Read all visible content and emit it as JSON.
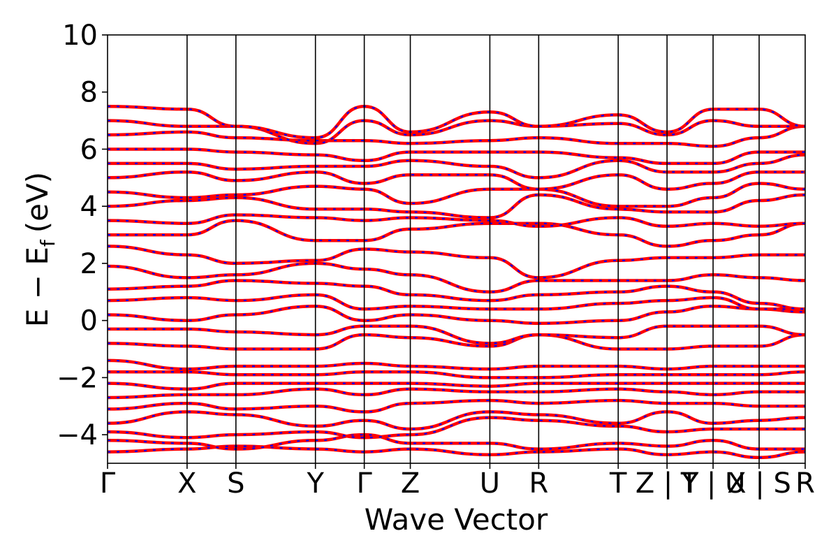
{
  "chart_data": {
    "type": "line",
    "title": "",
    "xlabel": "Wave Vector",
    "ylabel_main": "E − E",
    "ylabel_sub": "f",
    "ylabel_unit": "(eV)",
    "ylim": [
      -5,
      10
    ],
    "yticks": [
      -4,
      -2,
      0,
      2,
      4,
      6,
      8,
      10
    ],
    "ytick_labels": [
      "−4",
      "−2",
      "0",
      "2",
      "4",
      "6",
      "8",
      "10"
    ],
    "xlim": [
      0,
      1
    ],
    "kpoint_positions": [
      0,
      0.114,
      0.184,
      0.298,
      0.368,
      0.434,
      0.548,
      0.618,
      0.732,
      0.802,
      0.868,
      0.934,
      1.0
    ],
    "kpoint_labels": [
      "Γ",
      "X",
      "S",
      "Y",
      "Γ",
      "Z",
      "U",
      "R",
      "T",
      "Z | Y",
      "T | U",
      "X | S",
      "R"
    ],
    "grid": false,
    "colors": {
      "line": "#ff0000",
      "dash": "#0000ff"
    },
    "series": [
      {
        "values": [
          -4.6,
          -4.5,
          -4.4,
          -4.5,
          -4.6,
          -4.5,
          -4.7,
          -4.6,
          -4.5,
          -4.7,
          -4.6,
          -4.8,
          -4.6
        ]
      },
      {
        "values": [
          -4.2,
          -4.3,
          -4.5,
          -4.2,
          -4.0,
          -4.3,
          -4.3,
          -4.5,
          -4.3,
          -4.4,
          -4.2,
          -4.5,
          -4.5
        ]
      },
      {
        "values": [
          -3.9,
          -4.1,
          -4.0,
          -3.9,
          -4.1,
          -4.0,
          -3.4,
          -3.5,
          -3.7,
          -3.9,
          -3.8,
          -3.8,
          -3.8
        ]
      },
      {
        "values": [
          -3.6,
          -3.2,
          -3.3,
          -3.7,
          -3.5,
          -3.8,
          -3.2,
          -3.3,
          -3.6,
          -3.2,
          -3.6,
          -3.5,
          -3.4
        ]
      },
      {
        "values": [
          -3.1,
          -2.9,
          -3.1,
          -3.0,
          -3.2,
          -2.9,
          -2.8,
          -2.9,
          -2.8,
          -2.9,
          -2.9,
          -3.0,
          -3.0
        ]
      },
      {
        "values": [
          -2.7,
          -2.6,
          -2.6,
          -2.4,
          -2.6,
          -2.4,
          -2.5,
          -2.5,
          -2.4,
          -2.5,
          -2.6,
          -2.5,
          -2.5
        ]
      },
      {
        "values": [
          -2.2,
          -2.4,
          -2.2,
          -2.2,
          -2.2,
          -2.2,
          -2.3,
          -2.2,
          -2.2,
          -2.2,
          -2.2,
          -2.2,
          -2.2
        ]
      },
      {
        "values": [
          -1.8,
          -1.8,
          -1.9,
          -1.9,
          -1.8,
          -1.8,
          -2.0,
          -2.0,
          -1.9,
          -1.9,
          -1.9,
          -1.9,
          -1.8
        ]
      },
      {
        "values": [
          -1.4,
          -1.7,
          -1.6,
          -1.6,
          -1.5,
          -1.6,
          -1.7,
          -1.6,
          -1.6,
          -1.7,
          -1.6,
          -1.6,
          -1.6
        ]
      },
      {
        "values": [
          -0.8,
          -0.9,
          -1.0,
          -1.0,
          -0.5,
          -0.6,
          -0.9,
          -0.5,
          -1.0,
          -1.0,
          -0.9,
          -0.9,
          -0.5
        ]
      },
      {
        "values": [
          -0.3,
          -0.3,
          -0.4,
          -0.5,
          -0.2,
          -0.2,
          -0.8,
          -0.5,
          -0.6,
          -0.2,
          -0.2,
          -0.2,
          -0.5
        ]
      },
      {
        "values": [
          0.2,
          0.0,
          0.2,
          0.5,
          0.0,
          0.2,
          0.0,
          -0.1,
          0.0,
          0.3,
          0.5,
          0.4,
          0.3
        ]
      },
      {
        "values": [
          0.7,
          0.8,
          0.7,
          0.9,
          0.4,
          0.5,
          0.4,
          0.4,
          0.6,
          0.7,
          0.8,
          0.4,
          0.4
        ]
      },
      {
        "values": [
          1.1,
          1.2,
          1.4,
          1.3,
          1.2,
          0.9,
          0.7,
          0.9,
          1.0,
          1.2,
          1.0,
          0.6,
          0.4
        ]
      },
      {
        "values": [
          1.9,
          1.5,
          1.6,
          2.0,
          1.8,
          1.6,
          1.0,
          1.4,
          1.4,
          1.4,
          1.6,
          1.5,
          1.4
        ]
      },
      {
        "values": [
          2.6,
          2.3,
          2.0,
          2.1,
          2.5,
          2.4,
          2.2,
          1.5,
          2.1,
          2.2,
          2.2,
          2.3,
          2.3
        ]
      },
      {
        "values": [
          3.0,
          3.0,
          3.5,
          2.8,
          2.8,
          3.2,
          3.4,
          3.4,
          3.0,
          2.6,
          2.8,
          3.0,
          3.4
        ]
      },
      {
        "values": [
          3.5,
          3.4,
          3.7,
          3.6,
          3.5,
          3.6,
          3.5,
          3.3,
          3.6,
          3.3,
          3.4,
          3.3,
          3.4
        ]
      },
      {
        "values": [
          4.0,
          4.2,
          4.3,
          3.9,
          3.9,
          3.8,
          3.6,
          4.4,
          3.9,
          3.8,
          3.8,
          4.2,
          4.4
        ]
      },
      {
        "values": [
          4.5,
          4.3,
          4.4,
          4.7,
          4.6,
          4.1,
          4.6,
          4.6,
          4.0,
          4.0,
          4.3,
          4.8,
          4.6
        ]
      },
      {
        "values": [
          5.0,
          5.2,
          4.9,
          5.2,
          4.8,
          5.1,
          5.1,
          4.6,
          5.1,
          4.6,
          4.8,
          5.2,
          5.2
        ]
      },
      {
        "values": [
          5.5,
          5.5,
          5.3,
          5.4,
          5.4,
          5.6,
          5.4,
          5.0,
          5.6,
          5.2,
          5.2,
          5.5,
          5.8
        ]
      },
      {
        "values": [
          6.0,
          6.0,
          5.9,
          5.8,
          5.6,
          5.9,
          5.9,
          5.9,
          5.7,
          5.5,
          5.5,
          5.9,
          5.9
        ]
      },
      {
        "values": [
          6.5,
          6.6,
          6.4,
          6.3,
          6.3,
          6.2,
          6.3,
          6.4,
          6.2,
          6.2,
          6.1,
          6.4,
          6.8
        ]
      },
      {
        "values": [
          7.0,
          6.8,
          6.8,
          6.2,
          7.0,
          6.5,
          7.0,
          6.8,
          6.9,
          6.5,
          7.0,
          6.8,
          6.8
        ]
      },
      {
        "values": [
          7.5,
          7.4,
          6.8,
          6.4,
          7.5,
          6.6,
          7.3,
          6.8,
          7.2,
          6.6,
          7.4,
          7.4,
          6.8
        ]
      }
    ]
  }
}
